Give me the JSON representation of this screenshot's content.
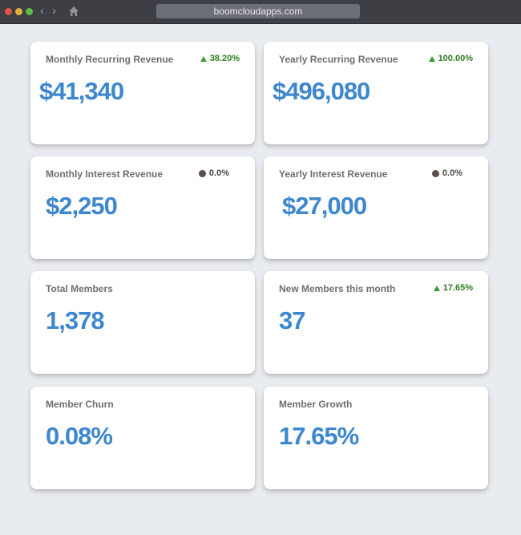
{
  "browser": {
    "url": "boomcloudapps.com",
    "icons": {
      "back": "chevron-left-icon",
      "forward": "chevron-right-icon",
      "home": "home-icon"
    }
  },
  "colors": {
    "value_blue": "#3d87cf",
    "positive_green": "#2e7d1f",
    "neutral_dot": "#5a4d4a",
    "background": "#e8ebef"
  },
  "cards": [
    {
      "title": "Monthly Recurring Revenue",
      "value": "$41,340",
      "change": "38.20%",
      "trend": "up"
    },
    {
      "title": "Yearly Recurring Revenue",
      "value": "$496,080",
      "change": "100.00%",
      "trend": "up"
    },
    {
      "title": "Monthly Interest Revenue",
      "value": "$2,250",
      "change": "0.0%",
      "trend": "neutral"
    },
    {
      "title": "Yearly Interest Revenue",
      "value": "$27,000",
      "change": "0.0%",
      "trend": "neutral"
    },
    {
      "title": "Total Members",
      "value": "1,378"
    },
    {
      "title": "New Members this month",
      "value": "37",
      "change": "17.65%",
      "trend": "up"
    },
    {
      "title": "Member Churn",
      "value": "0.08%"
    },
    {
      "title": "Member Growth",
      "value": "17.65%"
    }
  ]
}
